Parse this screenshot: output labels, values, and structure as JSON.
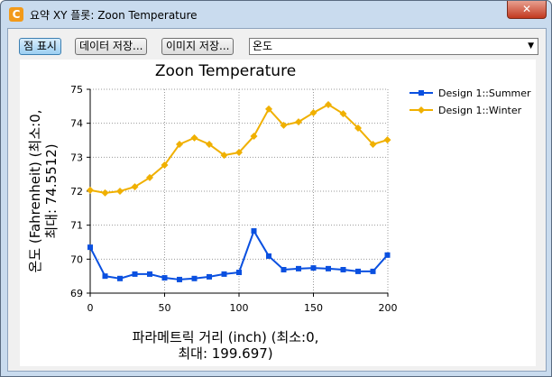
{
  "window": {
    "title": "요약 XY 플롯: Zoon Temperature"
  },
  "toolbar": {
    "buttons": [
      "점 표시",
      "데이터 저장...",
      "이미지 저장..."
    ],
    "dropdown": "온도"
  },
  "chart_data": {
    "type": "line",
    "title": "Zoon Temperature",
    "ylabel_lines": [
      "온도 (Fahrenheit) (최소:0,",
      "최대: 74.5512)"
    ],
    "xlabel_lines": [
      "파라메트릭 거리 (inch) (최소:0,",
      "최대: 199.697)"
    ],
    "x": [
      0,
      10,
      20,
      30,
      40,
      50,
      60,
      70,
      80,
      90,
      100,
      110,
      120,
      130,
      140,
      150,
      160,
      170,
      180,
      190,
      199.697
    ],
    "series": [
      {
        "name": "Design 1::Summer",
        "color": "#0a50e0",
        "marker": "square",
        "values": [
          70.35,
          69.5,
          69.43,
          69.56,
          69.56,
          69.45,
          69.4,
          69.43,
          69.48,
          69.56,
          69.61,
          70.83,
          70.09,
          69.69,
          69.72,
          69.74,
          69.72,
          69.69,
          69.64,
          69.64,
          70.12
        ]
      },
      {
        "name": "Design 1::Winter",
        "color": "#f0b000",
        "marker": "diamond",
        "values": [
          72.03,
          71.95,
          72.0,
          72.13,
          72.4,
          72.77,
          73.38,
          73.57,
          73.38,
          73.06,
          73.14,
          73.62,
          74.42,
          73.94,
          74.04,
          74.31,
          74.55,
          74.28,
          73.86,
          73.38,
          73.51
        ]
      }
    ],
    "xlim": [
      0,
      200
    ],
    "xticks": [
      0,
      50,
      100,
      150,
      200
    ],
    "ylim": [
      69,
      75
    ],
    "yticks": [
      69,
      70,
      71,
      72,
      73,
      74,
      75
    ],
    "grid": true,
    "legend": "right"
  }
}
